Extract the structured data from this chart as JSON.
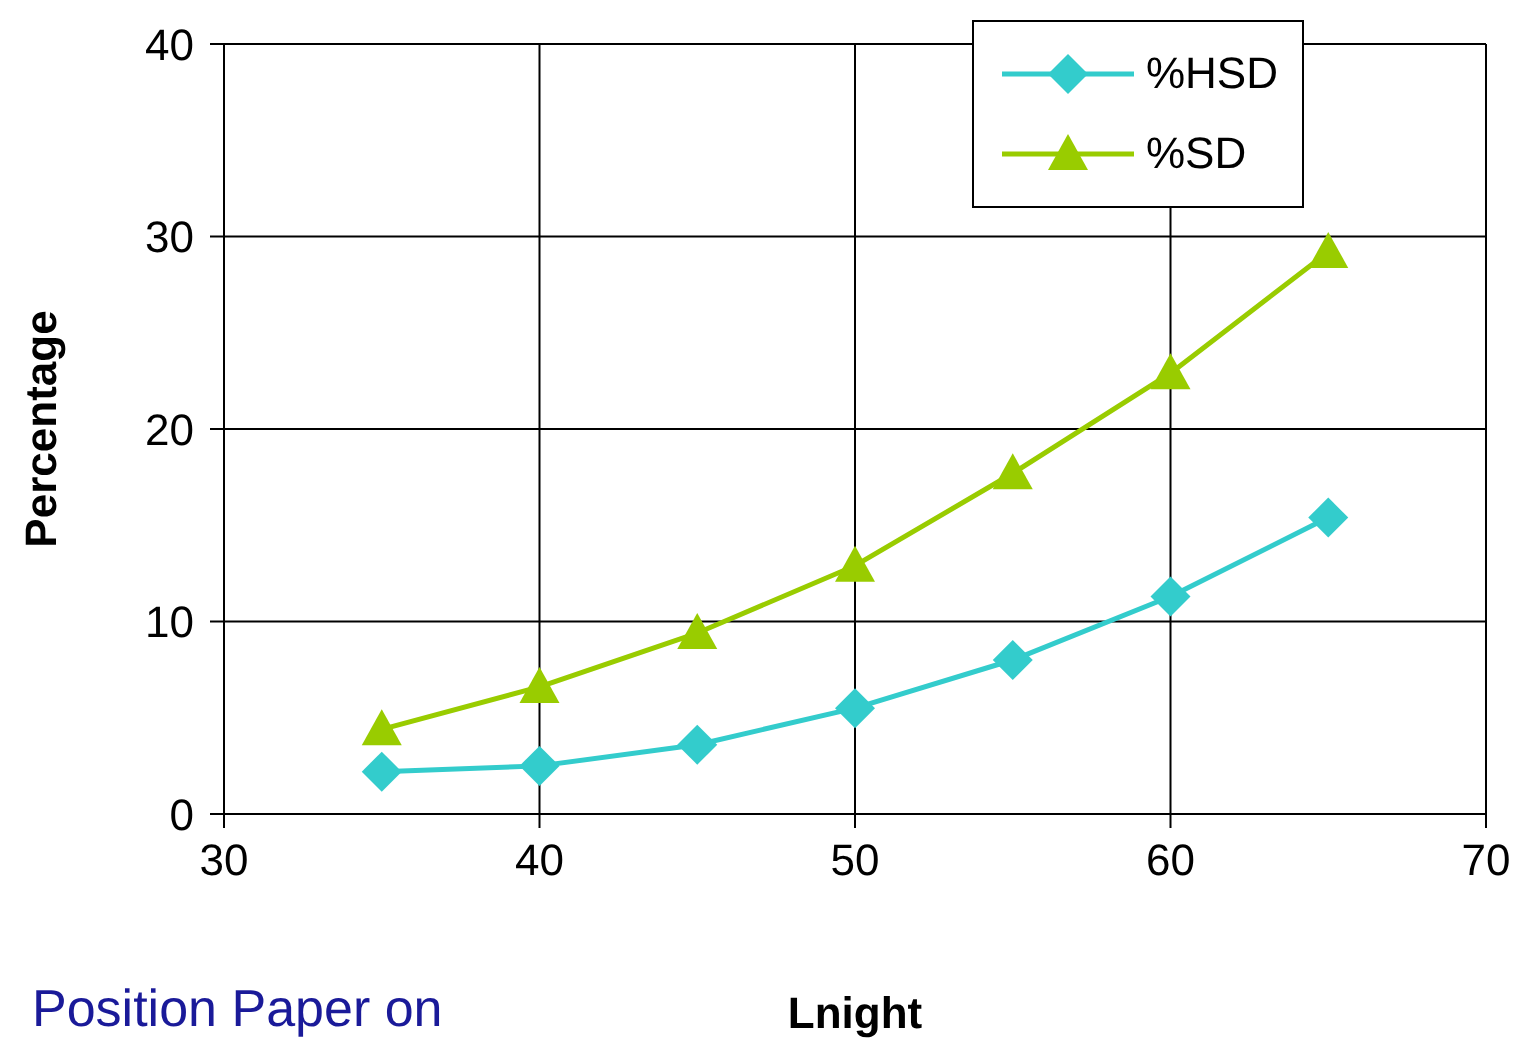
{
  "chart_data": {
    "type": "line",
    "xlabel": "Lnight",
    "ylabel": "Percentage",
    "x": [
      35,
      40,
      45,
      50,
      55,
      60,
      65
    ],
    "series": [
      {
        "name": "%HSD",
        "color": "#33cccc",
        "marker": "diamond",
        "values": [
          2.2,
          2.5,
          3.6,
          5.5,
          8.0,
          11.3,
          15.4
        ]
      },
      {
        "name": "%SD",
        "color": "#99cc00",
        "marker": "triangle",
        "values": [
          4.4,
          6.6,
          9.4,
          12.9,
          17.7,
          22.9,
          29.2
        ]
      }
    ],
    "xlim": [
      30,
      70
    ],
    "xticks": [
      30,
      40,
      50,
      60,
      70
    ],
    "ylim": [
      0,
      40
    ],
    "yticks": [
      0,
      10,
      20,
      30,
      40
    ],
    "grid": true,
    "legend": "top right",
    "line_style": "solid",
    "annotations": [
      "Position Paper on"
    ]
  }
}
